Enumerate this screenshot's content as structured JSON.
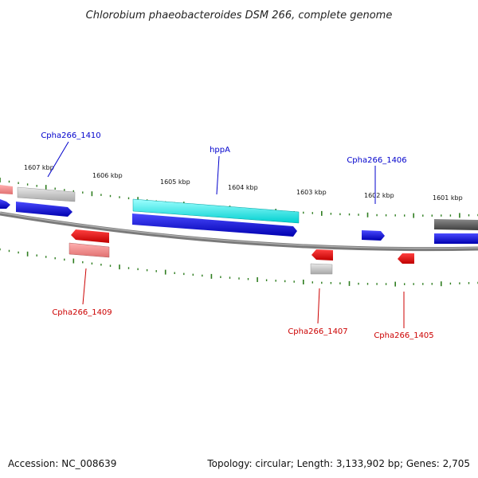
{
  "title": "Chlorobium phaeobacteroides DSM 266, complete genome",
  "footer": {
    "accession": "Accession: NC_008639",
    "summary": "Topology: circular; Length: 3,133,902 bp; Genes: 2,705"
  },
  "colors": {
    "backbone": "#808080",
    "tick": "#2e7d1f",
    "cds": "#0000dd",
    "highlight": "#00e5e5",
    "forward_label": "#0000cc",
    "reverse_label": "#cc0000",
    "rna_red": "#e00000",
    "pseudo_gray": "#b0b0b0",
    "dark_gray": "#555555",
    "pink": "#f08080"
  },
  "tick_labels": [
    "1607 kbp",
    "1606 kbp",
    "1605 kbp",
    "1604 kbp",
    "1603 kbp",
    "1602 kbp",
    "1601 kbp"
  ],
  "gene_labels": [
    {
      "text": "Cpha266_1410",
      "strand": "forward"
    },
    {
      "text": "hppA",
      "strand": "forward"
    },
    {
      "text": "Cpha266_1406",
      "strand": "forward"
    },
    {
      "text": "Cpha266_1409",
      "strand": "reverse"
    },
    {
      "text": "Cpha266_1407",
      "strand": "reverse"
    },
    {
      "text": "Cpha266_1405",
      "strand": "reverse"
    }
  ]
}
